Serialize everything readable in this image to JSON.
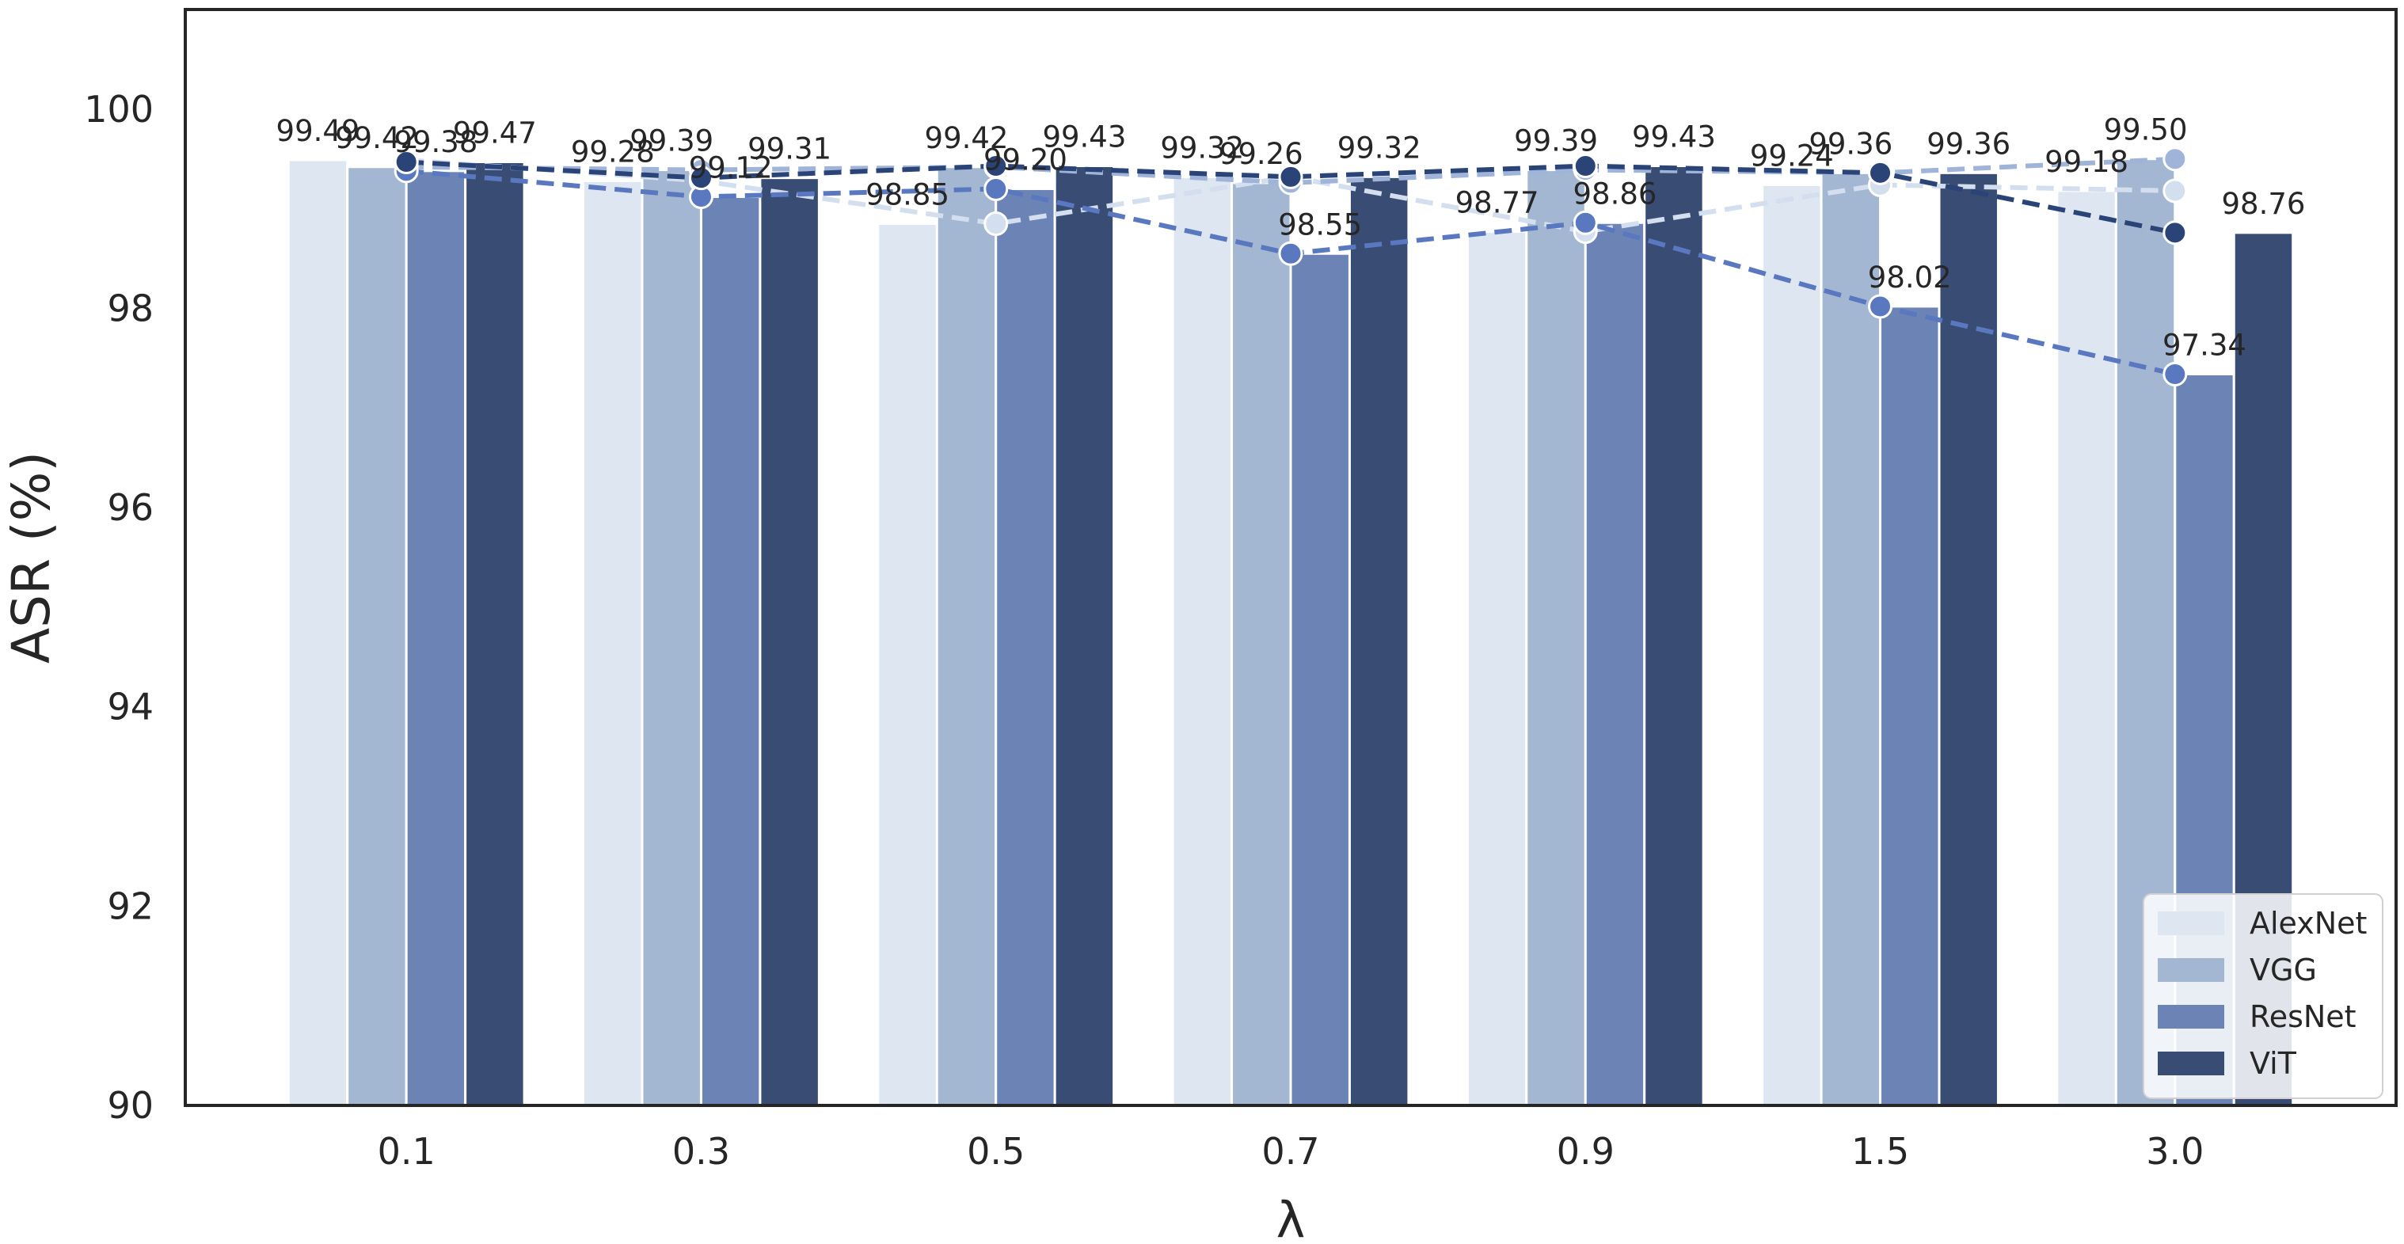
{
  "chart_data": {
    "type": "bar",
    "title": "",
    "xlabel": "λ",
    "ylabel": "ASR (%)",
    "ylim": [
      90,
      101
    ],
    "yticks": [
      90,
      92,
      94,
      96,
      98,
      100
    ],
    "categories": [
      "0.1",
      "0.3",
      "0.5",
      "0.7",
      "0.9",
      "1.5",
      "3.0"
    ],
    "series": [
      {
        "name": "AlexNet",
        "color": "#dde6f1",
        "line_color": "#d3deee",
        "values": [
          99.49,
          99.28,
          98.85,
          99.32,
          98.77,
          99.24,
          99.18
        ],
        "labels": [
          "99.49",
          "99.28",
          "98.85",
          "99.32",
          "98.77",
          "99.24",
          "99.18"
        ]
      },
      {
        "name": "VGG",
        "color": "#a4b7d2",
        "line_color": "#9fb4d8",
        "values": [
          99.42,
          99.39,
          99.42,
          99.26,
          99.39,
          99.36,
          99.5
        ],
        "labels": [
          "99.42",
          "99.39",
          "99.42",
          "99.26",
          "99.39",
          "99.36",
          "99.50"
        ]
      },
      {
        "name": "ResNet",
        "color": "#6c84b5",
        "line_color": "#5a78c0",
        "values": [
          99.38,
          99.12,
          99.2,
          98.55,
          98.86,
          98.02,
          97.34
        ],
        "labels": [
          "99.38",
          "99.12",
          "99.20",
          "98.55",
          "98.86",
          "98.02",
          "97.34"
        ]
      },
      {
        "name": "ViT",
        "color": "#394c74",
        "line_color": "#2b4478",
        "values": [
          99.47,
          99.31,
          99.43,
          99.32,
          99.43,
          99.36,
          98.76
        ],
        "labels": [
          "99.47",
          "99.31",
          "99.43",
          "99.32",
          "99.43",
          "99.36",
          "98.76"
        ]
      }
    ],
    "grid": false,
    "legend_position": "bottom-right"
  }
}
